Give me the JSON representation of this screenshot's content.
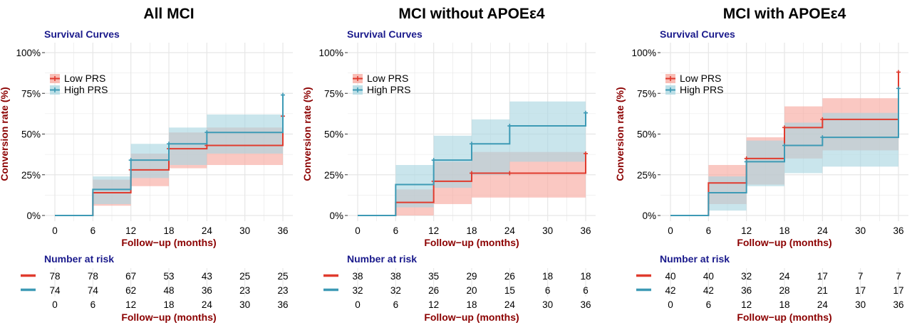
{
  "chart_data": [
    {
      "type": "line",
      "panel_title": "All MCI",
      "subtitle": "Survival Curves",
      "xlabel": "Follow−up (months)",
      "ylabel": "Conversion rate (%)",
      "x_ticks": [
        "0",
        "6",
        "12",
        "18",
        "24",
        "30",
        "36"
      ],
      "y_ticks": [
        "0%",
        "25%",
        "50%",
        "75%",
        "100%"
      ],
      "xlim": [
        0,
        36
      ],
      "ylim": [
        0,
        100
      ],
      "legend_position": "top-left",
      "series": [
        {
          "name": "Low PRS",
          "color": "#e03b2e",
          "band_color": "#f7a79c",
          "x": [
            0,
            6,
            12,
            18,
            24,
            36
          ],
          "y": [
            0,
            14,
            28,
            41,
            43,
            61
          ],
          "lower": [
            0,
            6,
            18,
            29,
            31,
            31
          ],
          "upper": [
            0,
            22,
            38,
            51,
            54,
            54
          ]
        },
        {
          "name": "High PRS",
          "color": "#3d9ab5",
          "band_color": "#a8d5e0",
          "x": [
            0,
            6,
            12,
            18,
            24,
            36
          ],
          "y": [
            0,
            16,
            34,
            44,
            51,
            74
          ],
          "lower": [
            0,
            7,
            23,
            31,
            38,
            38
          ],
          "upper": [
            0,
            24,
            44,
            54,
            62,
            62
          ]
        }
      ],
      "risk_table": {
        "title": "Number at risk",
        "xlabel": "Follow−up (months)",
        "rows": [
          {
            "group": "Low PRS",
            "counts": [
              "78",
              "78",
              "67",
              "53",
              "43",
              "25",
              "25"
            ]
          },
          {
            "group": "High PRS",
            "counts": [
              "74",
              "74",
              "62",
              "48",
              "36",
              "23",
              "23"
            ]
          }
        ]
      }
    },
    {
      "type": "line",
      "panel_title": "MCI without APOEε4",
      "subtitle": "Survival Curves",
      "xlabel": "Follow−up (months)",
      "ylabel": "Conversion rate (%)",
      "x_ticks": [
        "0",
        "6",
        "12",
        "18",
        "24",
        "30",
        "36"
      ],
      "y_ticks": [
        "0%",
        "25%",
        "50%",
        "75%",
        "100%"
      ],
      "xlim": [
        0,
        36
      ],
      "ylim": [
        0,
        100
      ],
      "legend_position": "top-left",
      "series": [
        {
          "name": "Low PRS",
          "color": "#e03b2e",
          "band_color": "#f7a79c",
          "x": [
            0,
            6,
            12,
            18,
            24,
            36
          ],
          "y": [
            0,
            8,
            21,
            26,
            26,
            38
          ],
          "lower": [
            0,
            0,
            7,
            11,
            11,
            11
          ],
          "upper": [
            0,
            16,
            33,
            39,
            39,
            39
          ]
        },
        {
          "name": "High PRS",
          "color": "#3d9ab5",
          "band_color": "#a8d5e0",
          "x": [
            0,
            6,
            12,
            18,
            24,
            36
          ],
          "y": [
            0,
            19,
            34,
            44,
            55,
            63
          ],
          "lower": [
            0,
            5,
            17,
            25,
            33,
            33
          ],
          "upper": [
            0,
            31,
            49,
            59,
            70,
            70
          ]
        }
      ],
      "risk_table": {
        "title": "Number at risk",
        "xlabel": "Follow−up (months)",
        "rows": [
          {
            "group": "Low PRS",
            "counts": [
              "38",
              "38",
              "35",
              "29",
              "26",
              "18",
              "18"
            ]
          },
          {
            "group": "High PRS",
            "counts": [
              "32",
              "32",
              "26",
              "20",
              "15",
              "6",
              "6"
            ]
          }
        ]
      }
    },
    {
      "type": "line",
      "panel_title": "MCI with APOEε4",
      "subtitle": "Survival Curves",
      "xlabel": "Follow−up (months)",
      "ylabel": "Conversion rate (%)",
      "x_ticks": [
        "0",
        "6",
        "12",
        "18",
        "24",
        "30",
        "36"
      ],
      "y_ticks": [
        "0%",
        "25%",
        "50%",
        "75%",
        "100%"
      ],
      "xlim": [
        0,
        36
      ],
      "ylim": [
        0,
        100
      ],
      "legend_position": "top-left",
      "series": [
        {
          "name": "Low PRS",
          "color": "#e03b2e",
          "band_color": "#f7a79c",
          "x": [
            0,
            6,
            12,
            18,
            24,
            36
          ],
          "y": [
            0,
            20,
            35,
            54,
            59,
            88
          ],
          "lower": [
            0,
            7,
            19,
            35,
            40,
            40
          ],
          "upper": [
            0,
            31,
            48,
            67,
            72,
            72
          ]
        },
        {
          "name": "High PRS",
          "color": "#3d9ab5",
          "band_color": "#a8d5e0",
          "x": [
            0,
            6,
            12,
            18,
            24,
            36
          ],
          "y": [
            0,
            14,
            33,
            43,
            48,
            78
          ],
          "lower": [
            0,
            3,
            18,
            26,
            30,
            30
          ],
          "upper": [
            0,
            24,
            46,
            57,
            63,
            63
          ]
        }
      ],
      "risk_table": {
        "title": "Number at risk",
        "xlabel": "Follow−up (months)",
        "rows": [
          {
            "group": "Low PRS",
            "counts": [
              "40",
              "40",
              "32",
              "24",
              "17",
              "7",
              "7"
            ]
          },
          {
            "group": "High PRS",
            "counts": [
              "42",
              "42",
              "36",
              "28",
              "21",
              "17",
              "17"
            ]
          }
        ]
      }
    }
  ]
}
